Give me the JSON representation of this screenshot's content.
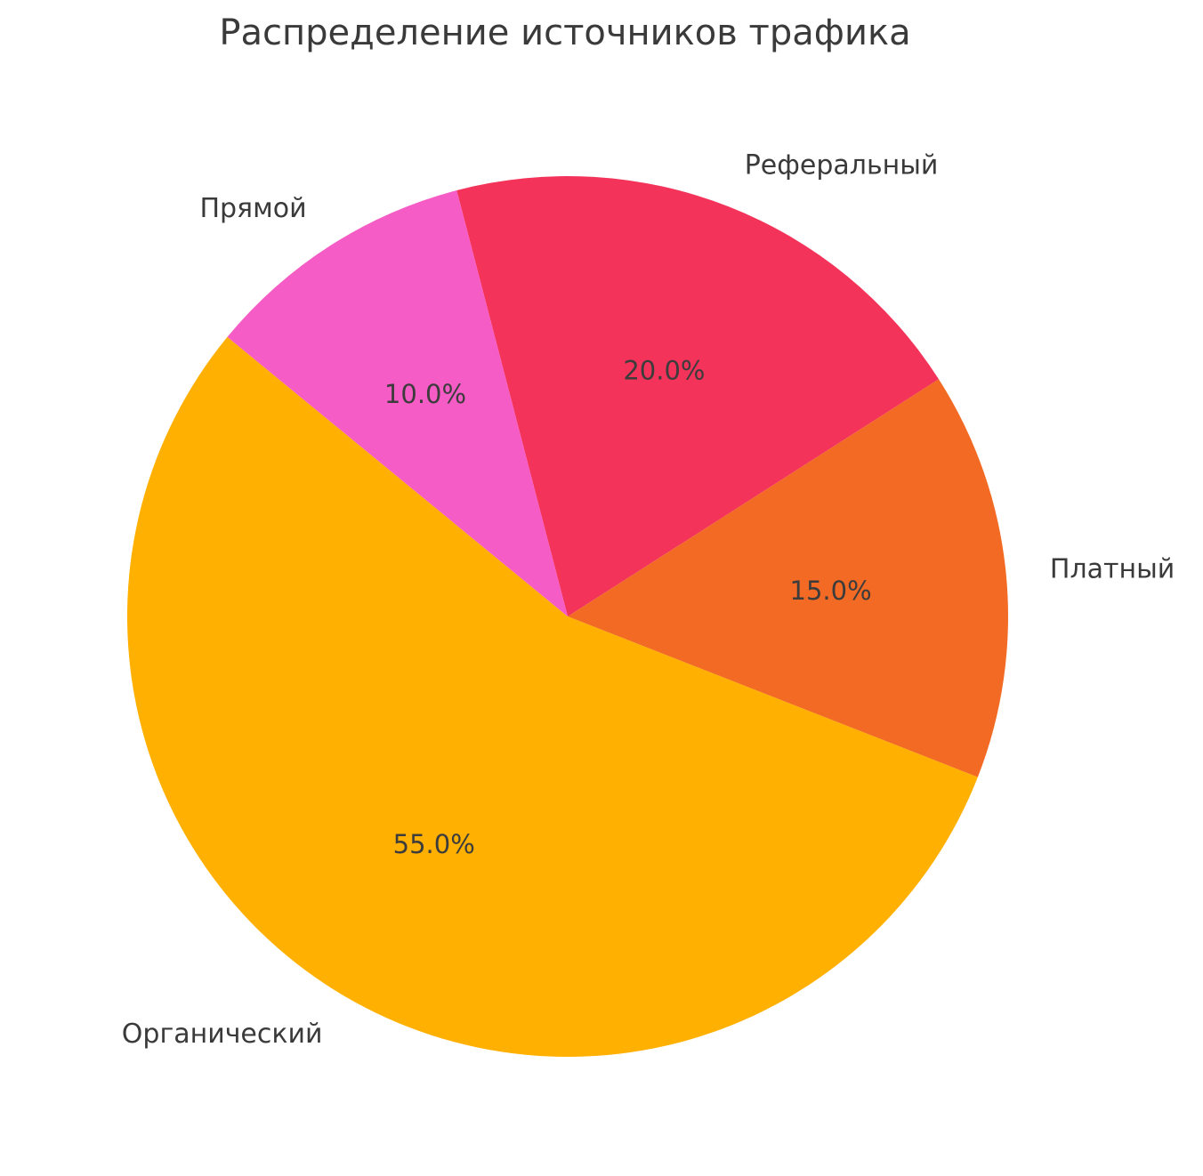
{
  "page": {
    "background_color": "#ffffff",
    "text_color": "#3a3a3a"
  },
  "chart_data": {
    "type": "pie",
    "title": "Распределение источников трафика",
    "legend": "none",
    "direction": "clockwise",
    "start_angle_deg": 104.6,
    "label_distance": 1.1,
    "pct_distance": 0.6,
    "slices": [
      {
        "label": "Реферальный",
        "value": 20.0,
        "pct_label": "20.0%",
        "color": "#F4335B"
      },
      {
        "label": "Платный",
        "value": 15.0,
        "pct_label": "15.0%",
        "color": "#F26A23"
      },
      {
        "label": "Органический",
        "value": 55.0,
        "pct_label": "55.0%",
        "color": "#FFB000"
      },
      {
        "label": "Прямой",
        "value": 10.0,
        "pct_label": "10.0%",
        "color": "#F55CC5"
      }
    ]
  }
}
